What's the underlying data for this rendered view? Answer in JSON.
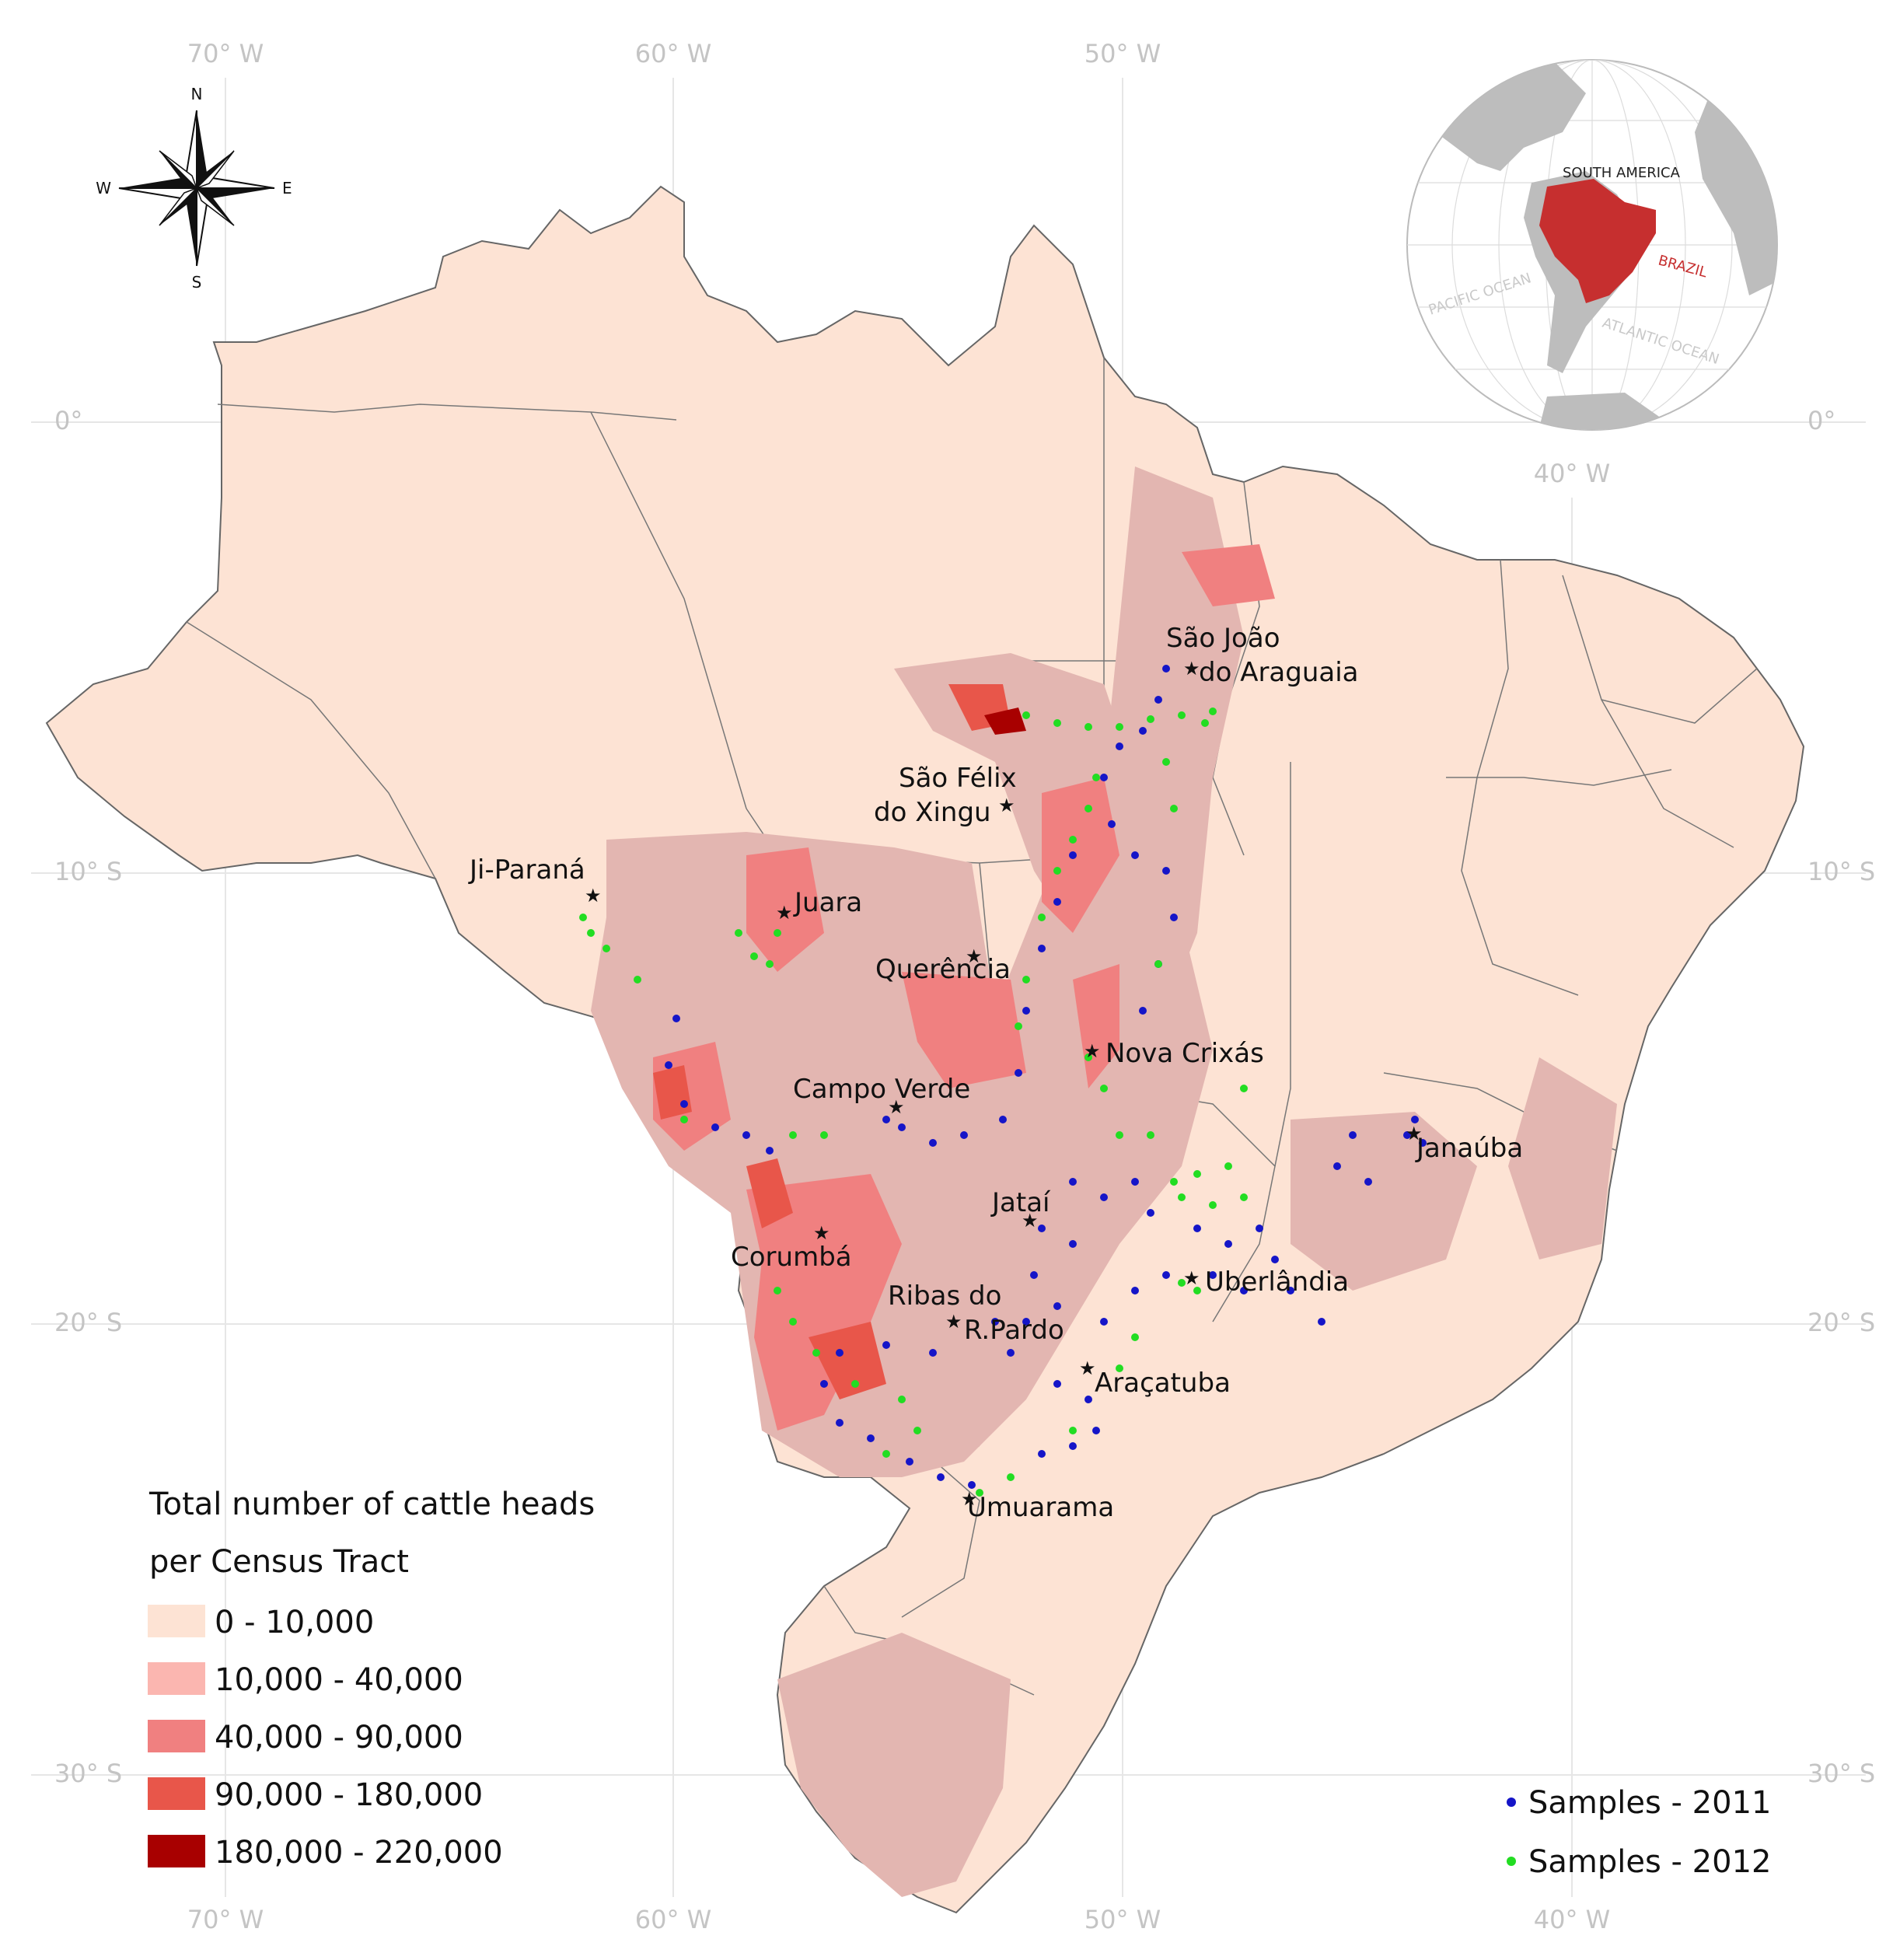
{
  "graticule": {
    "longitudes": [
      {
        "label": "70° W"
      },
      {
        "label": "60° W"
      },
      {
        "label": "50° W"
      },
      {
        "label": "40° W"
      }
    ],
    "latitudes": [
      {
        "label": "0°"
      },
      {
        "label": "10° S"
      },
      {
        "label": "20° S"
      },
      {
        "label": "30° S"
      }
    ]
  },
  "compass": {
    "n": "N",
    "s": "S",
    "e": "E",
    "w": "W"
  },
  "inset": {
    "continent": "SOUTH AMERICA",
    "country": "BRAZIL",
    "pacific": "PACIFIC OCEAN",
    "atlantic": "ATLANTIC OCEAN",
    "brazil_color": "#c62f2f",
    "land_color": "#bdbdbd"
  },
  "cities": [
    {
      "id": "sao-joao-do-araguaia",
      "lines": [
        "São João",
        "do Araguaia"
      ]
    },
    {
      "id": "sao-felix-do-xingu",
      "lines": [
        "São Félix",
        "do Xingu"
      ]
    },
    {
      "id": "ji-parana",
      "lines": [
        "Ji-Paraná"
      ]
    },
    {
      "id": "juara",
      "lines": [
        "Juara"
      ]
    },
    {
      "id": "querencia",
      "lines": [
        "Querência"
      ]
    },
    {
      "id": "nova-crixas",
      "lines": [
        "Nova Crixás"
      ]
    },
    {
      "id": "campo-verde",
      "lines": [
        "Campo Verde"
      ]
    },
    {
      "id": "janauba",
      "lines": [
        "Janaúba"
      ]
    },
    {
      "id": "jatai",
      "lines": [
        "Jataí"
      ]
    },
    {
      "id": "corumba",
      "lines": [
        "Corumbá"
      ]
    },
    {
      "id": "ribas-do-rio-pardo",
      "lines": [
        "Ribas do",
        "R.Pardo"
      ]
    },
    {
      "id": "uberlandia",
      "lines": [
        "Uberlândia"
      ]
    },
    {
      "id": "aracatuba",
      "lines": [
        "Araçatuba"
      ]
    },
    {
      "id": "umuarama",
      "lines": [
        "Umuarama"
      ]
    }
  ],
  "legend": {
    "title_line1": "Total number of cattle heads",
    "title_line2": "per Census Tract",
    "classes": [
      {
        "label": "0 - 10,000",
        "color": "#fde3d4"
      },
      {
        "label": "10,000 - 40,000",
        "color": "#fbb6b0"
      },
      {
        "label": "40,000 - 90,000",
        "color": "#f08080"
      },
      {
        "label": "90,000 - 180,000",
        "color": "#e8564a"
      },
      {
        "label": "180,000 - 220,000",
        "color": "#a80000"
      }
    ]
  },
  "samples_legend": [
    {
      "label": "Samples - 2011",
      "color": "#1515c8"
    },
    {
      "label": "Samples - 2012",
      "color": "#22dd22"
    }
  ]
}
